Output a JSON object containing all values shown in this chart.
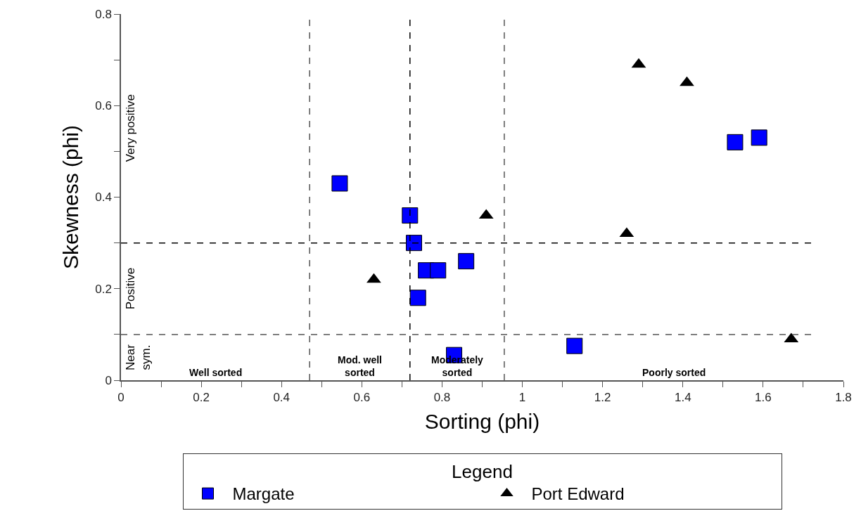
{
  "chart_data": {
    "type": "scatter",
    "xlabel": "Sorting (phi)",
    "ylabel": "Skewness (phi)",
    "legend_title": "Legend",
    "series": [
      {
        "name": "Margate",
        "color": "#0000ff",
        "marker": "square",
        "x": [
          0.545,
          0.72,
          0.73,
          0.76,
          0.79,
          0.86,
          0.74,
          0.83,
          1.13,
          1.53,
          1.59
        ],
        "values": [
          0.43,
          0.36,
          0.3,
          0.24,
          0.24,
          0.26,
          0.18,
          0.055,
          0.075,
          0.52,
          0.53
        ]
      },
      {
        "name": "Port Edward",
        "color": "#000000",
        "marker": "triangle",
        "x": [
          0.63,
          0.91,
          1.29,
          1.41,
          1.26,
          1.67
        ],
        "values": [
          0.22,
          0.36,
          0.69,
          0.65,
          0.32,
          0.09
        ]
      }
    ],
    "xlim": [
      0,
      1.8
    ],
    "ylim": [
      0,
      0.8
    ],
    "xticks": [
      0,
      {
        "value": 0.1,
        "label": null
      },
      0.2,
      {
        "value": 0.3,
        "label": null
      },
      0.4,
      {
        "value": 0.5,
        "label": null
      },
      0.6,
      {
        "value": 0.7,
        "label": null
      },
      0.8,
      {
        "value": 0.9,
        "label": null
      },
      1,
      {
        "value": 1.1,
        "label": null
      },
      1.2,
      {
        "value": 1.3,
        "label": null
      },
      1.4,
      {
        "value": 1.5,
        "label": null
      },
      1.6,
      {
        "value": 1.7,
        "label": null
      },
      1.8
    ],
    "yticks": [
      0,
      {
        "value": 0.1,
        "label": null
      },
      0.2,
      {
        "value": 0.3,
        "label": null
      },
      0.4,
      {
        "value": 0.5,
        "label": null
      },
      0.6,
      {
        "value": 0.7,
        "label": null
      },
      0.8
    ],
    "ref_lines": [
      {
        "axis": "x",
        "value": 0.47,
        "line_style": "dashed",
        "color": "#555555"
      },
      {
        "axis": "x",
        "value": 0.72,
        "line_style": "dashed",
        "color": "#000000"
      },
      {
        "axis": "x",
        "value": 0.955,
        "line_style": "dashed",
        "color": "#555555"
      },
      {
        "axis": "y",
        "value": 0.3,
        "line_style": "dashed",
        "color": "#000000"
      },
      {
        "axis": "y",
        "value": 0.1,
        "line_style": "dashed",
        "color": "#555555"
      }
    ],
    "annotations": [
      "Well sorted",
      "Mod. well sorted",
      "Moderately sorted",
      "Poorly sorted",
      "Very positive",
      "Positive",
      "Near sym."
    ],
    "legend": "bottom"
  }
}
